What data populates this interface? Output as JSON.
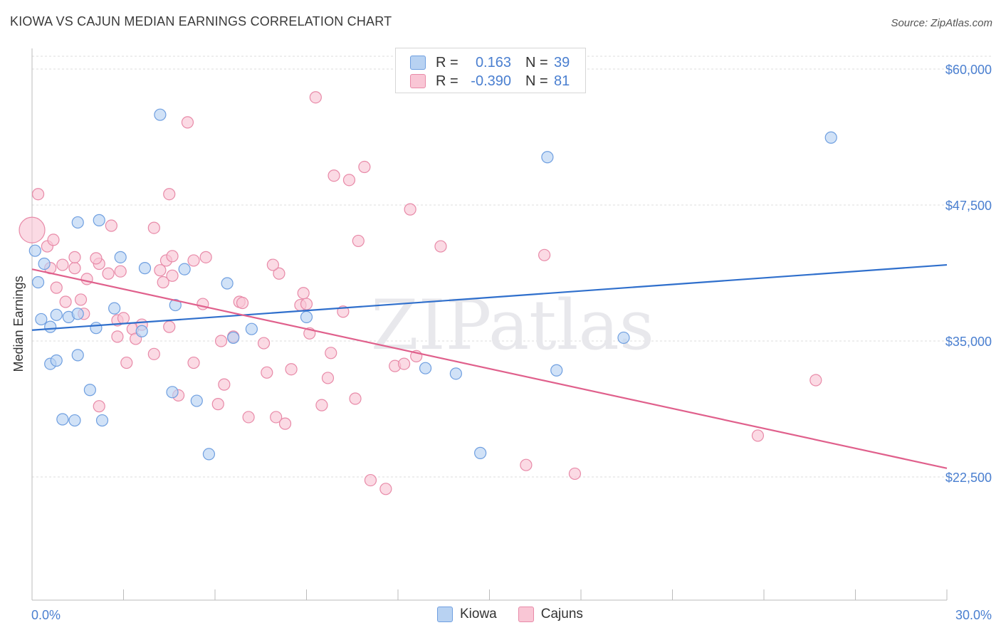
{
  "title": "KIOWA VS CAJUN MEDIAN EARNINGS CORRELATION CHART",
  "source": "Source: ZipAtlas.com",
  "watermark": "ZIPatlas",
  "colors": {
    "kiowa_fill": "#b8d2f2",
    "kiowa_stroke": "#6f9fe0",
    "kiowa_line": "#2f6fcc",
    "cajun_fill": "#f9c6d5",
    "cajun_stroke": "#e88aa8",
    "cajun_line": "#e0608c",
    "tick_label": "#4a7fd0",
    "grid": "#dddddd"
  },
  "legend": {
    "rows": [
      {
        "r_label": "R =",
        "r_value": "0.163",
        "n_label": "N =",
        "n_value": "39"
      },
      {
        "r_label": "R =",
        "r_value": "-0.390",
        "n_label": "N =",
        "n_value": "81"
      }
    ]
  },
  "bottom_legend": {
    "kiowa": "Kiowa",
    "cajuns": "Cajuns"
  },
  "chart_data": {
    "type": "scatter",
    "xlabel": "",
    "ylabel": "Median Earnings",
    "xlim": [
      0,
      30
    ],
    "ylim": [
      11500,
      62000
    ],
    "x_tick_labels": [
      "0.0%",
      "30.0%"
    ],
    "y_ticks": [
      22500,
      35000,
      47500,
      60000
    ],
    "y_tick_labels": [
      "$22,500",
      "$35,000",
      "$47,500",
      "$60,000"
    ],
    "grid": true,
    "series": [
      {
        "name": "Kiowa",
        "trend": {
          "x": [
            0,
            30
          ],
          "y": [
            36000,
            42000
          ]
        },
        "points": [
          [
            0.1,
            43300
          ],
          [
            0.2,
            40400
          ],
          [
            0.4,
            42100
          ],
          [
            0.3,
            37000
          ],
          [
            0.8,
            37400
          ],
          [
            0.6,
            36300
          ],
          [
            1.2,
            37200
          ],
          [
            1.5,
            37500
          ],
          [
            2.1,
            36200
          ],
          [
            2.7,
            38000
          ],
          [
            3.6,
            35900
          ],
          [
            3.7,
            41700
          ],
          [
            4.7,
            38300
          ],
          [
            5.0,
            41600
          ],
          [
            1.5,
            33700
          ],
          [
            0.6,
            32900
          ],
          [
            0.8,
            33200
          ],
          [
            1.9,
            30500
          ],
          [
            1.0,
            27800
          ],
          [
            1.4,
            27700
          ],
          [
            2.3,
            27700
          ],
          [
            4.6,
            30300
          ],
          [
            5.4,
            29500
          ],
          [
            5.8,
            24600
          ],
          [
            2.2,
            46100
          ],
          [
            1.5,
            45900
          ],
          [
            2.9,
            42700
          ],
          [
            6.4,
            40300
          ],
          [
            6.6,
            35300
          ],
          [
            7.2,
            36100
          ],
          [
            9.0,
            37200
          ],
          [
            12.9,
            32500
          ],
          [
            13.9,
            32000
          ],
          [
            14.7,
            24700
          ],
          [
            16.9,
            51900
          ],
          [
            17.2,
            32300
          ],
          [
            19.4,
            35300
          ],
          [
            26.2,
            53700
          ],
          [
            4.2,
            55800
          ]
        ]
      },
      {
        "name": "Cajuns",
        "trend": {
          "x": [
            0,
            30
          ],
          "y": [
            41600,
            23300
          ]
        },
        "points": [
          [
            0.0,
            45200
          ],
          [
            0.2,
            48500
          ],
          [
            0.5,
            43700
          ],
          [
            0.7,
            44300
          ],
          [
            1.0,
            42000
          ],
          [
            0.8,
            39900
          ],
          [
            0.6,
            41700
          ],
          [
            1.4,
            41700
          ],
          [
            1.1,
            38600
          ],
          [
            1.7,
            37500
          ],
          [
            1.6,
            38800
          ],
          [
            2.2,
            42100
          ],
          [
            2.1,
            42600
          ],
          [
            2.5,
            41200
          ],
          [
            2.6,
            45600
          ],
          [
            1.4,
            42700
          ],
          [
            2.9,
            41400
          ],
          [
            2.8,
            36900
          ],
          [
            3.0,
            37100
          ],
          [
            3.3,
            36100
          ],
          [
            2.8,
            35400
          ],
          [
            3.4,
            35200
          ],
          [
            3.1,
            33000
          ],
          [
            4.0,
            33800
          ],
          [
            4.0,
            45400
          ],
          [
            4.4,
            42400
          ],
          [
            4.3,
            40400
          ],
          [
            4.6,
            41000
          ],
          [
            4.5,
            36300
          ],
          [
            4.8,
            30000
          ],
          [
            4.5,
            48500
          ],
          [
            5.1,
            55100
          ],
          [
            5.3,
            42400
          ],
          [
            5.7,
            42700
          ],
          [
            5.3,
            33000
          ],
          [
            5.6,
            38400
          ],
          [
            6.1,
            29200
          ],
          [
            6.2,
            35000
          ],
          [
            6.6,
            35400
          ],
          [
            6.8,
            38600
          ],
          [
            6.9,
            38500
          ],
          [
            7.1,
            28000
          ],
          [
            7.6,
            34800
          ],
          [
            7.7,
            32100
          ],
          [
            8.0,
            28000
          ],
          [
            8.1,
            41200
          ],
          [
            8.3,
            27400
          ],
          [
            8.5,
            32400
          ],
          [
            8.8,
            38300
          ],
          [
            8.9,
            39400
          ],
          [
            9.1,
            35700
          ],
          [
            9.3,
            57400
          ],
          [
            9.5,
            29100
          ],
          [
            9.7,
            31600
          ],
          [
            9.8,
            33900
          ],
          [
            9.9,
            50200
          ],
          [
            10.4,
            49800
          ],
          [
            10.6,
            29700
          ],
          [
            10.7,
            44200
          ],
          [
            10.9,
            51000
          ],
          [
            11.1,
            22200
          ],
          [
            11.6,
            21400
          ],
          [
            11.9,
            32700
          ],
          [
            12.2,
            32900
          ],
          [
            12.4,
            47100
          ],
          [
            12.6,
            33600
          ],
          [
            13.4,
            43700
          ],
          [
            16.2,
            23600
          ],
          [
            16.8,
            42900
          ],
          [
            17.8,
            22800
          ],
          [
            23.8,
            26300
          ],
          [
            25.7,
            31400
          ],
          [
            2.2,
            29000
          ],
          [
            4.6,
            42800
          ],
          [
            6.3,
            31000
          ],
          [
            3.6,
            36500
          ],
          [
            1.8,
            40700
          ],
          [
            4.2,
            41500
          ],
          [
            7.9,
            42000
          ],
          [
            9.0,
            38400
          ],
          [
            10.2,
            37700
          ]
        ]
      }
    ]
  }
}
